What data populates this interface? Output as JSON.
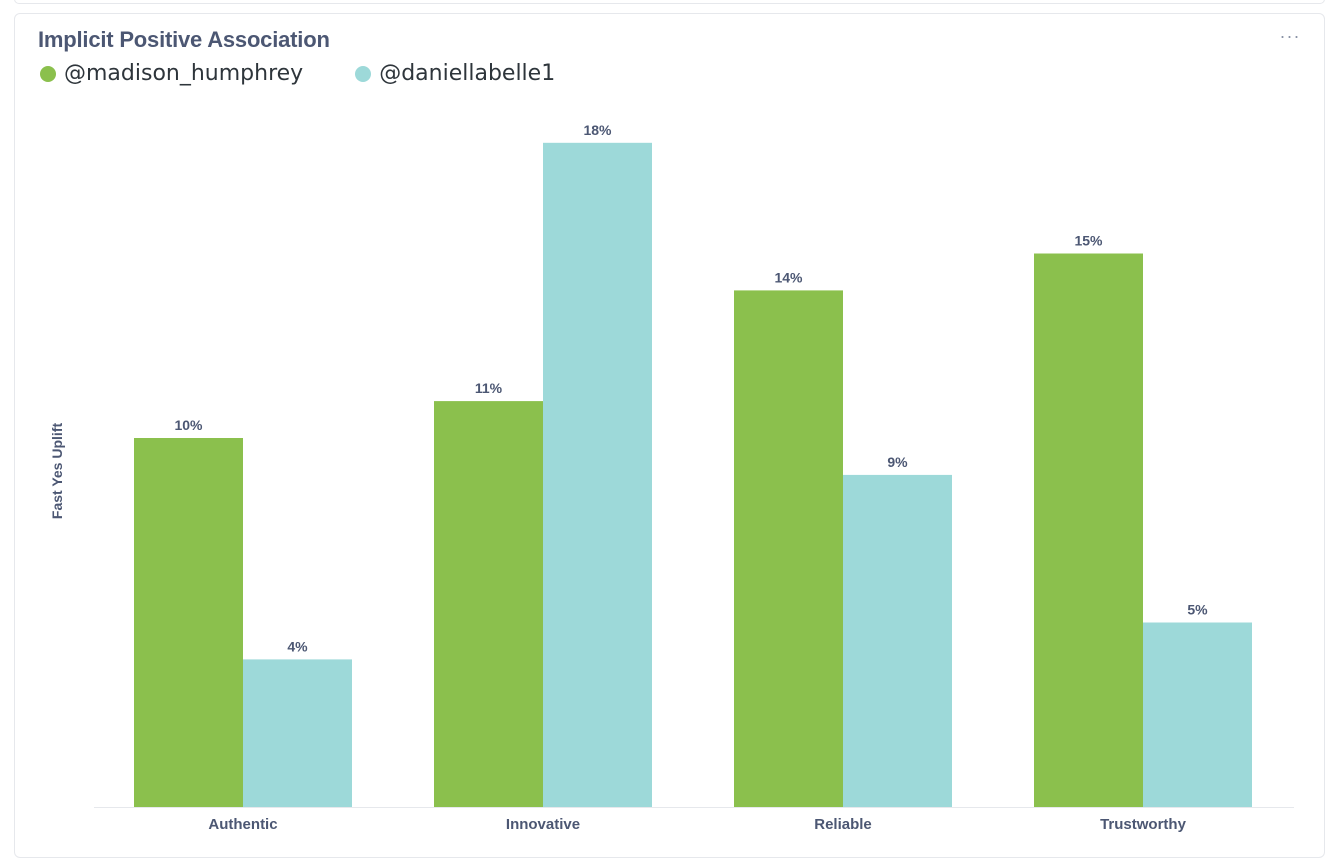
{
  "card": {
    "title": "Implicit Positive Association",
    "more_icon": "ellipsis-icon"
  },
  "chart_data": {
    "type": "bar",
    "title": "Implicit Positive Association",
    "categories": [
      "Authentic",
      "Innovative",
      "Reliable",
      "Trustworthy"
    ],
    "series": [
      {
        "name": "@madison_humphrey",
        "color": "#8bc04d",
        "values": [
          10,
          11,
          14,
          15
        ],
        "labels": [
          "10%",
          "11%",
          "14%",
          "15%"
        ]
      },
      {
        "name": "@daniellabelle1",
        "color": "#9dd9d9",
        "values": [
          4,
          18,
          9,
          5
        ],
        "labels": [
          "4%",
          "18%",
          "9%",
          "5%"
        ]
      }
    ],
    "xlabel": "",
    "ylabel": "Fast Yes Uplift",
    "grid": false,
    "legend_position": "top-left"
  }
}
